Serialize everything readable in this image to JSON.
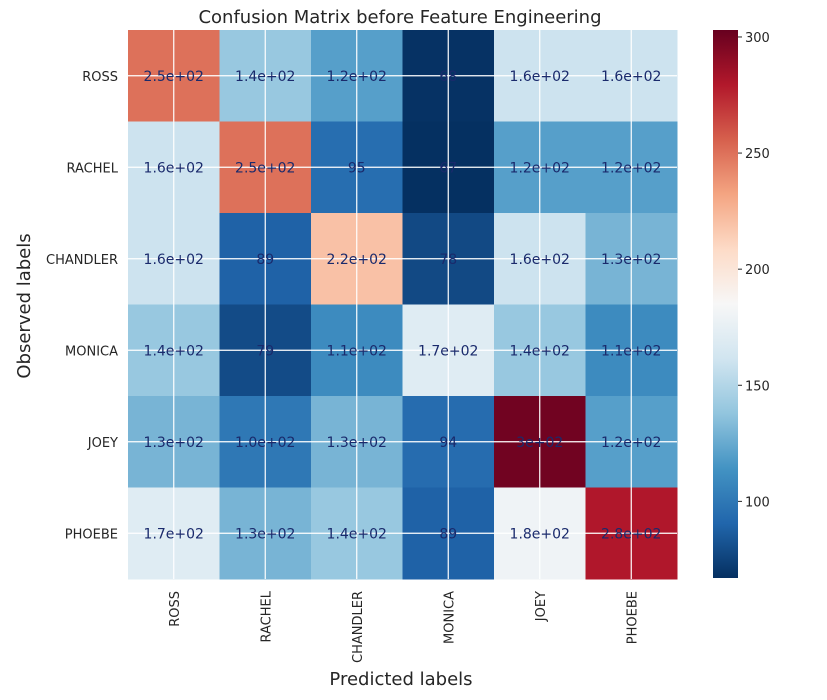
{
  "chart_data": {
    "type": "heatmap",
    "title": "Confusion Matrix before Feature Engineering",
    "xlabel": "Predicted labels",
    "ylabel": "Observed labels",
    "x_categories": [
      "ROSS",
      "RACHEL",
      "CHANDLER",
      "MONICA",
      "JOEY",
      "PHOEBE"
    ],
    "y_categories": [
      "ROSS",
      "RACHEL",
      "CHANDLER",
      "MONICA",
      "JOEY",
      "PHOEBE"
    ],
    "values": [
      [
        250,
        140,
        120,
        68,
        160,
        160
      ],
      [
        160,
        250,
        95,
        67,
        120,
        120
      ],
      [
        160,
        89,
        220,
        78,
        160,
        130
      ],
      [
        140,
        79,
        110,
        170,
        140,
        110
      ],
      [
        130,
        100,
        130,
        94,
        300,
        120
      ],
      [
        170,
        130,
        140,
        89,
        180,
        280
      ]
    ],
    "labels": [
      [
        "2.5e+02",
        "1.4e+02",
        "1.2e+02",
        "68",
        "1.6e+02",
        "1.6e+02"
      ],
      [
        "1.6e+02",
        "2.5e+02",
        "95",
        "67",
        "1.2e+02",
        "1.2e+02"
      ],
      [
        "1.6e+02",
        "89",
        "2.2e+02",
        "78",
        "1.6e+02",
        "1.3e+02"
      ],
      [
        "1.4e+02",
        "79",
        "1.1e+02",
        "1.7e+02",
        "1.4e+02",
        "1.1e+02"
      ],
      [
        "1.3e+02",
        "1.0e+02",
        "1.3e+02",
        "94",
        "3e+02",
        "1.2e+02"
      ],
      [
        "1.7e+02",
        "1.3e+02",
        "1.4e+02",
        "89",
        "1.8e+02",
        "2.8e+02"
      ]
    ],
    "colormap": "RdBu_r",
    "vmin": 67,
    "vmax": 303,
    "colorbar_ticks": [
      100,
      150,
      200,
      250,
      300
    ],
    "grid": true,
    "label_color": "#1a2a6c"
  }
}
